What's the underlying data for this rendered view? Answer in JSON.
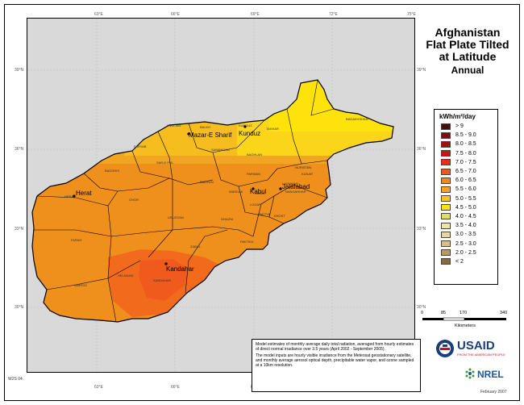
{
  "title": {
    "line1": "Afghanistan",
    "line2": "Flat Plate Tilted",
    "line3": "at Latitude",
    "line4": "Annual"
  },
  "ticks": {
    "lon": [
      "63°E",
      "66°E",
      "69°E",
      "72°E",
      "75°E"
    ],
    "lat": [
      "39°N",
      "36°N",
      "33°N",
      "30°N"
    ]
  },
  "legend": {
    "unit": "kWh/m²/day",
    "classes": [
      {
        "label": "> 9",
        "color": "#4a0d0d"
      },
      {
        "label": "8.5 - 9.0",
        "color": "#7a0f0f"
      },
      {
        "label": "8.0 - 8.5",
        "color": "#a01010"
      },
      {
        "label": "7.5 - 8.0",
        "color": "#c81414"
      },
      {
        "label": "7.0 - 7.5",
        "color": "#ee2a1a"
      },
      {
        "label": "6.5 - 7.0",
        "color": "#f5561d"
      },
      {
        "label": "6.0 - 6.5",
        "color": "#f08a1c"
      },
      {
        "label": "5.5 - 6.0",
        "color": "#f6a424"
      },
      {
        "label": "5.0 - 5.5",
        "color": "#f7c51e"
      },
      {
        "label": "4.5 - 5.0",
        "color": "#fde20c"
      },
      {
        "label": "4.0 - 4.5",
        "color": "#e3de6c"
      },
      {
        "label": "3.5 - 4.0",
        "color": "#efe6a6"
      },
      {
        "label": "3.0 - 3.5",
        "color": "#e8d6a4"
      },
      {
        "label": "2.5 - 3.0",
        "color": "#d9bf86"
      },
      {
        "label": "2.0 - 2.5",
        "color": "#b99863"
      },
      {
        "label": "< 2",
        "color": "#8a6a3c"
      }
    ]
  },
  "scale_bar": {
    "ticks": [
      "0",
      "85",
      "170",
      "340"
    ],
    "unit": "Kilometers"
  },
  "cities": {
    "herat": "Herat",
    "mazar": "Mazar-E Sharif",
    "kunduz": "Kunduz",
    "kabul": "Kabul",
    "jalalabad": "Jalalabad",
    "kandahar": "Kandahar"
  },
  "provinces": [
    "BADAKHSHAN",
    "JAWZJAN",
    "BALKH",
    "KUNDUZ",
    "TAKHAR",
    "FARYAB",
    "SAMANGAN",
    "BAGHLAN",
    "BADGHIS",
    "SAR-E POL",
    "BAMYAN",
    "PARWAN",
    "NURISTAN",
    "KUNAR",
    "HERAT",
    "GHOR",
    "WARDAK",
    "KABUL",
    "LAGHMAN",
    "NANGARHAR",
    "URUZGAN",
    "GHAZNI",
    "LOGAR",
    "PAKTYA",
    "KHOST",
    "FARAH",
    "ZABUL",
    "PAKTIKA",
    "NIMROZ",
    "HELMAND",
    "KANDAHAR"
  ],
  "notes": [
    "Model estimates of monthly average daily total radiation, averaged from hourly estimates of direct normal irradiance over 3.5 years (April 2002 - September 2005).",
    "The model inputs are hourly visible irradiance from the Meteosat geostationary satellite, and monthly average aerosol optical depth, precipitable water vapor, and ozone sampled at a 10km resolution."
  ],
  "logos": {
    "usaid": "USAID",
    "usaid_tagline": "FROM THE AMERICAN PEOPLE",
    "nrel": "NREL"
  },
  "map_id": "W2S 04",
  "date": "February 2007"
}
